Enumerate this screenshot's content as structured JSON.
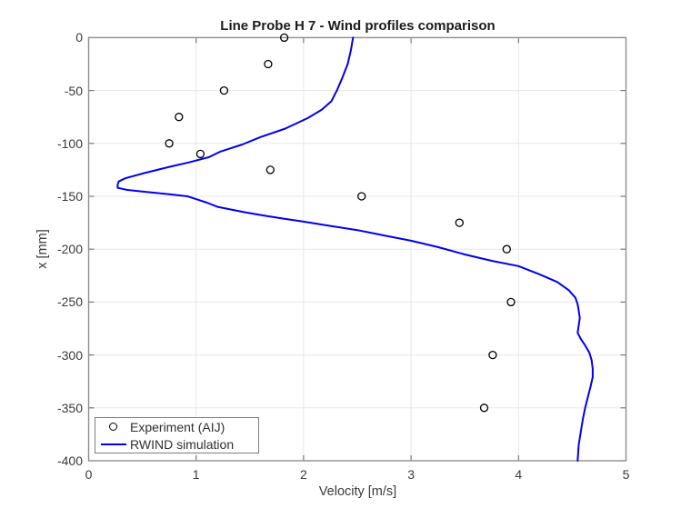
{
  "chart_data": {
    "type": "line",
    "title": "Line Probe H 7 - Wind profiles comparison",
    "xlabel": "Velocity [m/s]",
    "ylabel": "x [mm]",
    "xlim": [
      0,
      5
    ],
    "ylim": [
      -400,
      0
    ],
    "x_ticks": [
      "0",
      "1",
      "2",
      "3",
      "4",
      "5"
    ],
    "y_ticks": [
      "0",
      "-50",
      "-100",
      "-150",
      "-200",
      "-250",
      "-300",
      "-350",
      "-400"
    ],
    "grid": true,
    "legend_position": "bottom-left",
    "series": [
      {
        "name": "Experiment (AIJ)",
        "type": "scatter",
        "marker": "circle",
        "marker_size": 8,
        "color": "#000000",
        "points": [
          [
            1.82,
            0
          ],
          [
            1.67,
            -25
          ],
          [
            1.26,
            -50
          ],
          [
            0.84,
            -75
          ],
          [
            0.75,
            -100
          ],
          [
            1.04,
            -110
          ],
          [
            1.69,
            -125
          ],
          [
            2.54,
            -150
          ],
          [
            3.45,
            -175
          ],
          [
            3.89,
            -200
          ],
          [
            3.93,
            -250
          ],
          [
            3.76,
            -300
          ],
          [
            3.68,
            -350
          ]
        ]
      },
      {
        "name": "RWIND simulation",
        "type": "line",
        "line_width": 2,
        "color": "#0000ee",
        "points": [
          [
            2.46,
            0
          ],
          [
            2.44,
            -12
          ],
          [
            2.41,
            -25
          ],
          [
            2.36,
            -38
          ],
          [
            2.31,
            -50
          ],
          [
            2.26,
            -60
          ],
          [
            2.17,
            -68
          ],
          [
            2.04,
            -76
          ],
          [
            1.83,
            -86
          ],
          [
            1.6,
            -94
          ],
          [
            1.43,
            -101
          ],
          [
            1.22,
            -108
          ],
          [
            1.12,
            -113
          ],
          [
            0.93,
            -118
          ],
          [
            0.76,
            -122
          ],
          [
            0.52,
            -128
          ],
          [
            0.34,
            -133
          ],
          [
            0.28,
            -136
          ],
          [
            0.27,
            -139
          ],
          [
            0.27,
            -142
          ],
          [
            0.36,
            -144
          ],
          [
            0.54,
            -146
          ],
          [
            0.75,
            -148
          ],
          [
            0.92,
            -150
          ],
          [
            0.98,
            -152
          ],
          [
            1.1,
            -156
          ],
          [
            1.2,
            -160
          ],
          [
            1.3,
            -162
          ],
          [
            1.45,
            -165
          ],
          [
            1.62,
            -168
          ],
          [
            1.8,
            -171
          ],
          [
            2.0,
            -174
          ],
          [
            2.25,
            -178
          ],
          [
            2.5,
            -182
          ],
          [
            2.75,
            -187
          ],
          [
            3.0,
            -192
          ],
          [
            3.25,
            -198
          ],
          [
            3.5,
            -205
          ],
          [
            3.75,
            -211
          ],
          [
            4.0,
            -216
          ],
          [
            4.2,
            -224
          ],
          [
            4.36,
            -231
          ],
          [
            4.47,
            -239
          ],
          [
            4.53,
            -246
          ],
          [
            4.55,
            -252
          ],
          [
            4.56,
            -258
          ],
          [
            4.57,
            -265
          ],
          [
            4.56,
            -272
          ],
          [
            4.55,
            -279
          ],
          [
            4.58,
            -285
          ],
          [
            4.62,
            -291
          ],
          [
            4.66,
            -298
          ],
          [
            4.68,
            -305
          ],
          [
            4.69,
            -313
          ],
          [
            4.69,
            -321
          ],
          [
            4.67,
            -330
          ],
          [
            4.65,
            -338
          ],
          [
            4.62,
            -350
          ],
          [
            4.6,
            -360
          ],
          [
            4.58,
            -372
          ],
          [
            4.56,
            -385
          ],
          [
            4.55,
            -400
          ]
        ]
      }
    ]
  },
  "colors": {
    "simulation_line": "#0000ee",
    "experiment_marker": "#000000",
    "grid": "#e7e7e7",
    "axis_box": "#8f8f8f",
    "tick": "#6f6f6f",
    "tick_text": "#3a3a3a",
    "title_text": "#1b1b1b",
    "background": "#ffffff"
  }
}
